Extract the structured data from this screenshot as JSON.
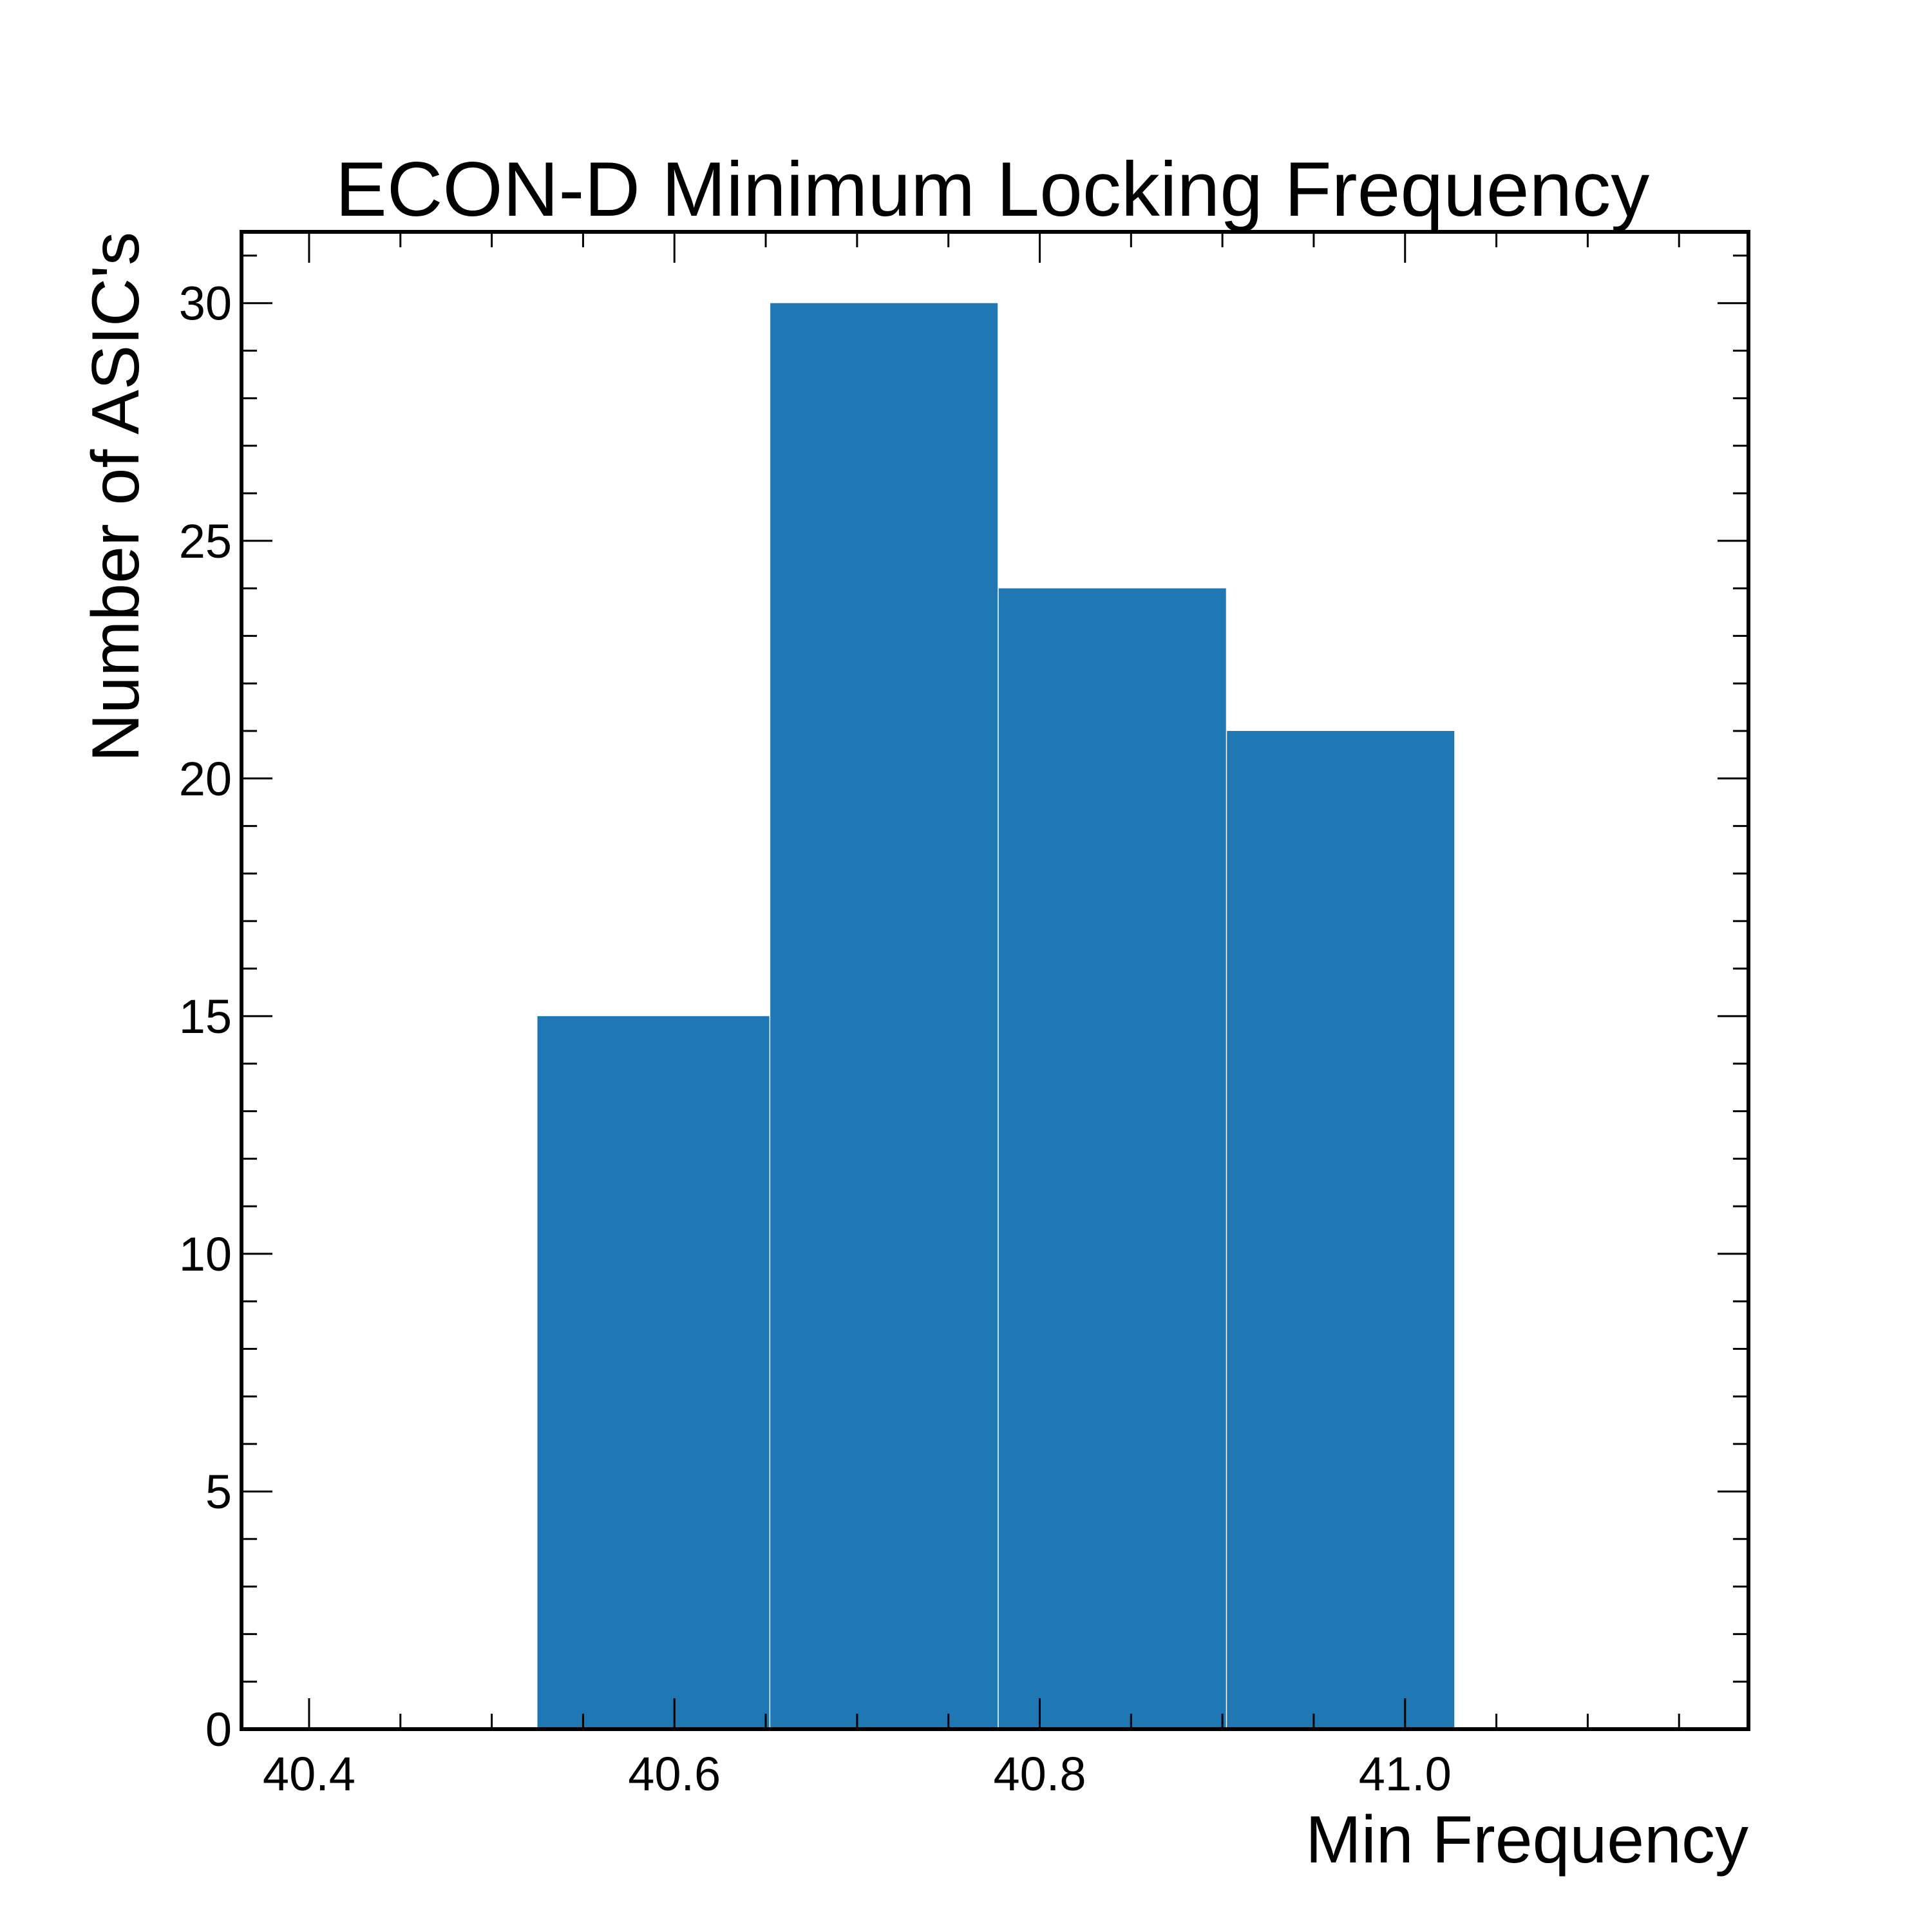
{
  "chart_data": {
    "type": "bar",
    "title": "ECON-D Minimum Locking Frequency",
    "xlabel": "Min Frequency",
    "ylabel": "Number of ASIC's",
    "bin_edges": [
      40.525,
      40.6525,
      40.7775,
      40.9025,
      41.0275
    ],
    "values": [
      15,
      30,
      24,
      21
    ],
    "xlim": [
      40.363,
      41.188
    ],
    "ylim": [
      0,
      31.5
    ],
    "x_ticks": [
      "40.4",
      "40.6",
      "40.8",
      "41.0"
    ],
    "x_tick_values": [
      40.4,
      40.6,
      40.8,
      41.0
    ],
    "y_ticks": [
      "0",
      "5",
      "10",
      "15",
      "20",
      "25",
      "30"
    ],
    "y_tick_values": [
      0,
      5,
      10,
      15,
      20,
      25,
      30
    ],
    "grid": false,
    "bar_color": "#1f77b4"
  }
}
